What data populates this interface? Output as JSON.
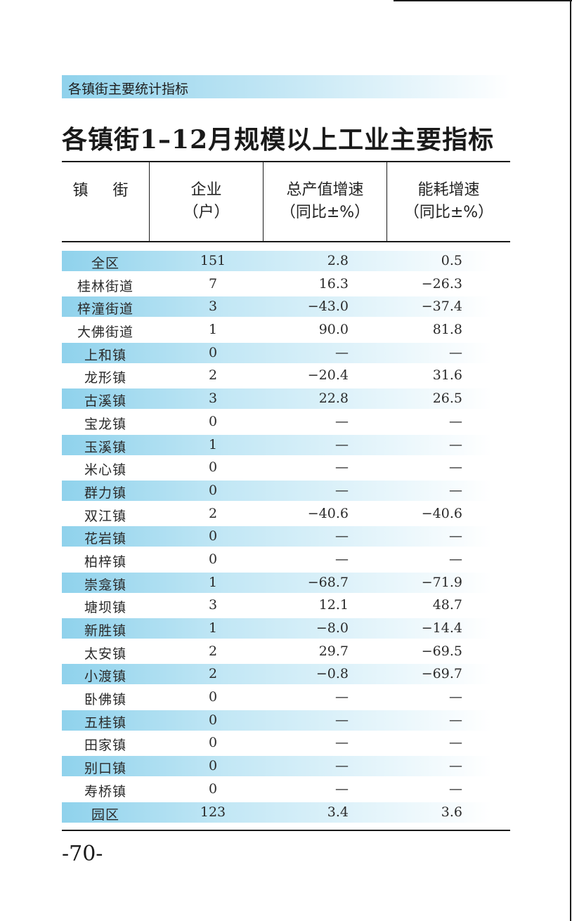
{
  "section_label": "各镇街主要统计指标",
  "title": "各镇街1–12月规模以上工业主要指标",
  "columns": {
    "town": "镇 街",
    "enterprises": [
      "企业",
      "（户）"
    ],
    "output_growth": [
      "总产值增速",
      "（同比±%）"
    ],
    "energy_growth": [
      "能耗增速",
      "（同比±%）"
    ]
  },
  "rows": [
    {
      "name": "全区",
      "enterprises": "151",
      "output": "2.8",
      "energy": "0.5"
    },
    {
      "name": "桂林街道",
      "enterprises": "7",
      "output": "16.3",
      "energy": "−26.3"
    },
    {
      "name": "梓潼街道",
      "enterprises": "3",
      "output": "−43.0",
      "energy": "−37.4"
    },
    {
      "name": "大佛街道",
      "enterprises": "1",
      "output": "90.0",
      "energy": "81.8"
    },
    {
      "name": "上和镇",
      "enterprises": "0",
      "output": "—",
      "energy": "—"
    },
    {
      "name": "龙形镇",
      "enterprises": "2",
      "output": "−20.4",
      "energy": "31.6"
    },
    {
      "name": "古溪镇",
      "enterprises": "3",
      "output": "22.8",
      "energy": "26.5"
    },
    {
      "name": "宝龙镇",
      "enterprises": "0",
      "output": "—",
      "energy": "—"
    },
    {
      "name": "玉溪镇",
      "enterprises": "1",
      "output": "—",
      "energy": "—"
    },
    {
      "name": "米心镇",
      "enterprises": "0",
      "output": "—",
      "energy": "—"
    },
    {
      "name": "群力镇",
      "enterprises": "0",
      "output": "—",
      "energy": "—"
    },
    {
      "name": "双江镇",
      "enterprises": "2",
      "output": "−40.6",
      "energy": "−40.6"
    },
    {
      "name": "花岩镇",
      "enterprises": "0",
      "output": "—",
      "energy": "—"
    },
    {
      "name": "柏梓镇",
      "enterprises": "0",
      "output": "—",
      "energy": "—"
    },
    {
      "name": "崇龛镇",
      "enterprises": "1",
      "output": "−68.7",
      "energy": "−71.9"
    },
    {
      "name": "塘坝镇",
      "enterprises": "3",
      "output": "12.1",
      "energy": "48.7"
    },
    {
      "name": "新胜镇",
      "enterprises": "1",
      "output": "−8.0",
      "energy": "−14.4"
    },
    {
      "name": "太安镇",
      "enterprises": "2",
      "output": "29.7",
      "energy": "−69.5"
    },
    {
      "name": "小渡镇",
      "enterprises": "2",
      "output": "−0.8",
      "energy": "−69.7"
    },
    {
      "name": "卧佛镇",
      "enterprises": "0",
      "output": "—",
      "energy": "—"
    },
    {
      "name": "五桂镇",
      "enterprises": "0",
      "output": "—",
      "energy": "—"
    },
    {
      "name": "田家镇",
      "enterprises": "0",
      "output": "—",
      "energy": "—"
    },
    {
      "name": "别口镇",
      "enterprises": "0",
      "output": "—",
      "energy": "—"
    },
    {
      "name": "寿桥镇",
      "enterprises": "0",
      "output": "—",
      "energy": "—"
    },
    {
      "name": "园区",
      "enterprises": "123",
      "output": "3.4",
      "energy": "3.6"
    }
  ],
  "page_number": "-70-",
  "colors": {
    "band": "#8fd2ec",
    "rule": "#1a1a1a",
    "text": "#222222"
  }
}
